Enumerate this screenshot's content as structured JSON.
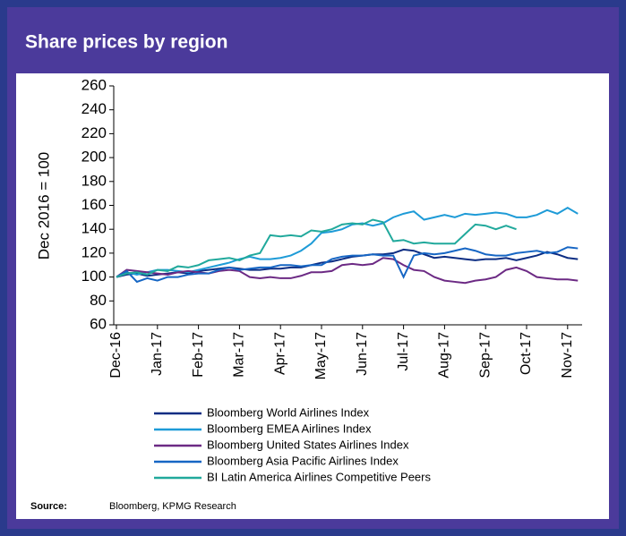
{
  "chart_data": {
    "type": "line",
    "title": "Share prices by region",
    "y_label": "Dec 2016 = 100",
    "categories": [
      "Dec-16",
      null,
      null,
      null,
      "Jan-17",
      null,
      null,
      null,
      "Feb-17",
      null,
      null,
      null,
      "Mar-17",
      null,
      null,
      null,
      "Apr-17",
      null,
      null,
      null,
      "May-17",
      null,
      null,
      null,
      "Jun-17",
      null,
      null,
      null,
      "Jul-17",
      null,
      null,
      null,
      "Aug-17",
      null,
      null,
      null,
      "Sep-17",
      null,
      null,
      null,
      "Oct-17",
      null,
      null,
      null,
      "Nov-17",
      null
    ],
    "series": [
      {
        "name": "Bloomberg World Airlines Index",
        "color": "#0c2d83",
        "values": [
          100,
          102,
          103,
          101,
          102,
          103,
          104,
          103,
          105,
          106,
          107,
          108,
          107,
          106,
          106,
          107,
          107,
          108,
          108,
          110,
          112,
          113,
          115,
          117,
          118,
          119,
          119,
          120,
          123,
          122,
          119,
          116,
          117,
          116,
          115,
          114,
          115,
          115,
          116,
          114,
          116,
          118,
          121,
          119,
          116,
          115
        ]
      },
      {
        "name": "Bloomberg EMEA Airlines Index",
        "color": "#1e9bd7",
        "values": [
          100,
          104,
          102,
          104,
          106,
          106,
          105,
          104,
          106,
          108,
          110,
          112,
          115,
          117,
          115,
          115,
          116,
          118,
          122,
          128,
          137,
          138,
          140,
          144,
          145,
          143,
          145,
          150,
          153,
          155,
          148,
          150,
          152,
          150,
          153,
          152,
          153,
          154,
          153,
          150,
          150,
          152,
          156,
          153,
          158,
          153
        ]
      },
      {
        "name": "Bloomberg United States Airlines Index",
        "color": "#6c2a84",
        "values": [
          100,
          106,
          105,
          104,
          103,
          102,
          104,
          105,
          104,
          103,
          105,
          106,
          105,
          100,
          99,
          100,
          99,
          99,
          101,
          104,
          104,
          105,
          110,
          111,
          110,
          111,
          116,
          115,
          110,
          106,
          105,
          100,
          97,
          96,
          95,
          97,
          98,
          100,
          106,
          108,
          105,
          100,
          99,
          98,
          98,
          97
        ]
      },
      {
        "name": "Bloomberg Asia Pacific Airlines Index",
        "color": "#1666c4",
        "values": [
          100,
          105,
          96,
          99,
          97,
          100,
          100,
          102,
          103,
          103,
          106,
          108,
          106,
          107,
          108,
          108,
          110,
          110,
          109,
          110,
          110,
          115,
          117,
          118,
          118,
          119,
          118,
          118,
          100,
          118,
          120,
          119,
          120,
          122,
          124,
          122,
          119,
          118,
          118,
          120,
          121,
          122,
          120,
          121,
          125,
          124
        ]
      },
      {
        "name": "BI Latin America Airlines Competitive Peers",
        "color": "#21a99c",
        "values": [
          100,
          103,
          104,
          102,
          106,
          105,
          109,
          108,
          110,
          114,
          115,
          116,
          114,
          118,
          120,
          135,
          134,
          135,
          134,
          139,
          138,
          140,
          144,
          145,
          144,
          148,
          146,
          130,
          131,
          128,
          129,
          128,
          128,
          128,
          136,
          144,
          143,
          140,
          143,
          140,
          null,
          null,
          null,
          null,
          null,
          null
        ]
      }
    ],
    "ylim": [
      60,
      260
    ],
    "yticks": [
      60,
      80,
      100,
      120,
      140,
      160,
      180,
      200,
      220,
      240,
      260
    ],
    "source_label": "Source:",
    "source": "Bloomberg, KPMG Research"
  }
}
